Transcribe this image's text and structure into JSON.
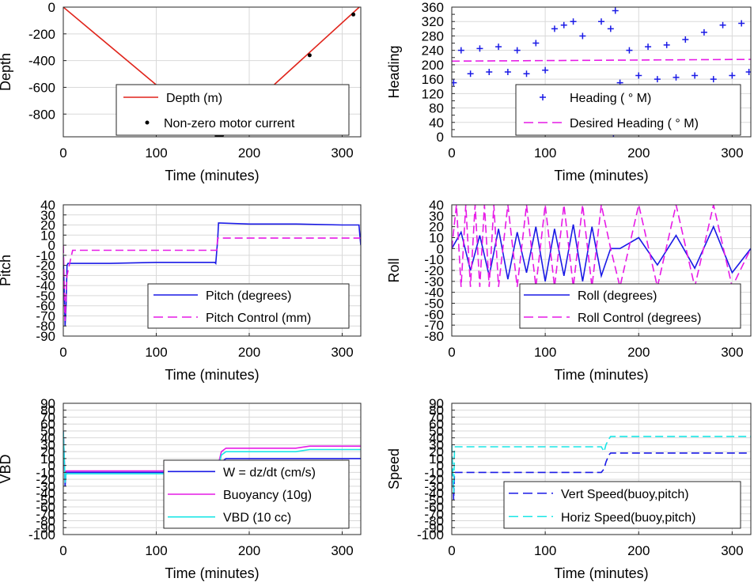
{
  "chart_data": [
    {
      "id": "depth",
      "type": "line",
      "xlabel": "Time (minutes)",
      "ylabel": "Depth",
      "xlim": [
        0,
        320
      ],
      "ylim": [
        -970,
        0
      ],
      "xticks": [
        0,
        100,
        200,
        300
      ],
      "yticks": [
        0,
        -200,
        -400,
        -600,
        -800
      ],
      "grid": true,
      "legend_position": "lower-right",
      "series": [
        {
          "name": "Depth (m)",
          "style": "line",
          "color": "#e0241b",
          "x": [
            0,
            166,
            320
          ],
          "y": [
            0,
            -965,
            10
          ]
        },
        {
          "name": "Non-zero motor current",
          "style": "dots",
          "color": "#000000",
          "x": [
            165,
            168,
            171,
            175,
            265,
            312
          ],
          "y": [
            -963,
            -963,
            -955,
            -935,
            -360,
            -55
          ]
        }
      ]
    },
    {
      "id": "heading",
      "type": "scatter",
      "xlabel": "Time (minutes)",
      "ylabel": "Heading",
      "xlim": [
        0,
        320
      ],
      "ylim": [
        0,
        360
      ],
      "xticks": [
        0,
        100,
        200,
        300
      ],
      "yticks": [
        0,
        40,
        80,
        120,
        160,
        200,
        240,
        280,
        320,
        360
      ],
      "yticks_minor": [
        20,
        60,
        100,
        140,
        180,
        220,
        260,
        300,
        340
      ],
      "grid": true,
      "legend_position": "lower-right",
      "series": [
        {
          "name": "Heading (   ° M)",
          "style": "plus",
          "color": "#1a1ae6",
          "x": [
            2,
            10,
            20,
            30,
            40,
            50,
            60,
            70,
            80,
            90,
            100,
            110,
            115,
            120,
            125,
            130,
            140,
            150,
            160,
            165,
            170,
            173,
            175,
            180,
            190,
            200,
            210,
            220,
            230,
            240,
            250,
            260,
            270,
            280,
            290,
            300,
            310,
            318
          ],
          "y": [
            150,
            240,
            175,
            245,
            180,
            250,
            180,
            240,
            175,
            260,
            185,
            300,
            120,
            310,
            130,
            320,
            280,
            130,
            320,
            125,
            300,
            10,
            350,
            150,
            240,
            170,
            250,
            160,
            255,
            165,
            270,
            170,
            290,
            160,
            310,
            170,
            315,
            180
          ]
        },
        {
          "name": "Desired Heading (     ° M)",
          "style": "dashed",
          "color": "#e61ae6",
          "x": [
            0,
            320
          ],
          "y": [
            210,
            215
          ]
        }
      ]
    },
    {
      "id": "pitch",
      "type": "line",
      "xlabel": "Time (minutes)",
      "ylabel": "Pitch",
      "xlim": [
        0,
        320
      ],
      "ylim": [
        -90,
        40
      ],
      "xticks": [
        0,
        100,
        200,
        300
      ],
      "yticks": [
        40,
        30,
        20,
        10,
        0,
        -10,
        -20,
        -30,
        -40,
        -50,
        -60,
        -70,
        -80,
        -90
      ],
      "grid": true,
      "legend_position": "lower-right",
      "series": [
        {
          "name": "Pitch (degrees)",
          "style": "line",
          "color": "#1a1ae6",
          "x": [
            0,
            2,
            3,
            4,
            5,
            50,
            100,
            163,
            164,
            166,
            167,
            200,
            250,
            300,
            318,
            319,
            320
          ],
          "y": [
            -10,
            -80,
            -60,
            -20,
            -18,
            -18,
            -17,
            -17,
            -18,
            5,
            22,
            21,
            21,
            20,
            20,
            10,
            0
          ]
        },
        {
          "name": "Pitch Control (mm)",
          "style": "dashed",
          "color": "#e61ae6",
          "x": [
            0,
            2,
            4,
            10,
            165,
            166,
            170,
            320
          ],
          "y": [
            0,
            -75,
            -30,
            -5,
            -5,
            7,
            7,
            7
          ]
        }
      ]
    },
    {
      "id": "roll",
      "type": "line",
      "xlabel": "Time (minutes)",
      "ylabel": "Roll",
      "xlim": [
        0,
        320
      ],
      "ylim": [
        -80,
        40
      ],
      "xticks": [
        0,
        100,
        200,
        300
      ],
      "yticks": [
        40,
        30,
        20,
        10,
        0,
        -10,
        -20,
        -30,
        -40,
        -50,
        -60,
        -70,
        -80
      ],
      "grid": true,
      "legend_position": "lower-right",
      "series": [
        {
          "name": "Roll (degrees)",
          "style": "line",
          "color": "#1a1ae6",
          "x": [
            0,
            10,
            20,
            30,
            40,
            50,
            60,
            70,
            80,
            90,
            100,
            110,
            120,
            130,
            140,
            150,
            160,
            170,
            180,
            200,
            220,
            240,
            260,
            280,
            300,
            320
          ],
          "y": [
            0,
            15,
            -20,
            12,
            -25,
            18,
            -28,
            15,
            -22,
            20,
            -30,
            18,
            -25,
            22,
            -30,
            20,
            -25,
            0,
            0,
            10,
            -15,
            12,
            -18,
            20,
            -22,
            0
          ]
        },
        {
          "name": "Roll Control (degrees)",
          "style": "dashed",
          "color": "#e61ae6",
          "x": [
            0,
            5,
            10,
            15,
            20,
            25,
            30,
            35,
            40,
            45,
            50,
            60,
            70,
            80,
            90,
            100,
            110,
            120,
            130,
            140,
            150,
            160,
            170,
            180,
            200,
            220,
            240,
            260,
            280,
            300,
            320
          ],
          "y": [
            0,
            40,
            -35,
            40,
            -35,
            40,
            -35,
            40,
            -35,
            40,
            -35,
            40,
            -35,
            40,
            -35,
            40,
            -35,
            40,
            -35,
            40,
            -35,
            40,
            0,
            -35,
            40,
            -35,
            40,
            -35,
            40,
            -35,
            0
          ]
        }
      ]
    },
    {
      "id": "vbd",
      "type": "line",
      "xlabel": "Time (minutes)",
      "ylabel": "VBD",
      "xlim": [
        0,
        320
      ],
      "ylim": [
        -100,
        90
      ],
      "xticks": [
        0,
        100,
        200,
        300
      ],
      "yticks": [
        90,
        80,
        70,
        60,
        50,
        40,
        30,
        20,
        10,
        0,
        -10,
        -20,
        -30,
        -40,
        -50,
        -60,
        -70,
        -80,
        -90,
        -100
      ],
      "grid": true,
      "legend_position": "lower-right",
      "series": [
        {
          "name": "W = dz/dt (cm/s)",
          "style": "line",
          "color": "#1a1ae6",
          "x": [
            0,
            2,
            3,
            5,
            50,
            100,
            163,
            165,
            170,
            175,
            250,
            300,
            320
          ],
          "y": [
            50,
            -30,
            -10,
            -10,
            -10,
            -10,
            -10,
            -10,
            5,
            10,
            10,
            10,
            10
          ]
        },
        {
          "name": "Buoyancy (10g)",
          "style": "line",
          "color": "#e61ae6",
          "x": [
            0,
            2,
            3,
            5,
            50,
            100,
            163,
            165,
            170,
            175,
            250,
            265,
            300,
            320
          ],
          "y": [
            50,
            -25,
            -8,
            -8,
            -8,
            -8,
            -8,
            -8,
            20,
            25,
            25,
            28,
            28,
            28
          ]
        },
        {
          "name": "VBD (10 cc)",
          "style": "line",
          "color": "#1ae6e6",
          "x": [
            0,
            2,
            3,
            5,
            50,
            100,
            163,
            165,
            170,
            175,
            250,
            265,
            300,
            320
          ],
          "y": [
            50,
            -25,
            -12,
            -12,
            -12,
            -12,
            -12,
            -12,
            15,
            20,
            20,
            23,
            23,
            23
          ]
        }
      ]
    },
    {
      "id": "speed",
      "type": "line",
      "xlabel": "Time (minutes)",
      "ylabel": "Speed",
      "xlim": [
        0,
        320
      ],
      "ylim": [
        -100,
        90
      ],
      "xticks": [
        0,
        100,
        200,
        300
      ],
      "yticks": [
        90,
        80,
        70,
        60,
        50,
        40,
        30,
        20,
        10,
        0,
        -10,
        -20,
        -30,
        -40,
        -50,
        -60,
        -70,
        -80,
        -90,
        -100
      ],
      "grid": true,
      "legend_position": "lower-right",
      "series": [
        {
          "name": "Vert Speed(buoy,pitch)",
          "style": "dashed",
          "color": "#1a1ae6",
          "x": [
            0,
            2,
            3,
            5,
            50,
            100,
            160,
            163,
            165,
            168,
            170,
            250,
            320
          ],
          "y": [
            30,
            -50,
            -10,
            -10,
            -10,
            -10,
            -10,
            -5,
            5,
            15,
            18,
            18,
            18
          ]
        },
        {
          "name": "Horiz Speed(buoy,pitch)",
          "style": "dashed",
          "color": "#1ae6e6",
          "x": [
            0,
            2,
            3,
            5,
            50,
            100,
            160,
            163,
            165,
            168,
            170,
            250,
            320
          ],
          "y": [
            30,
            -40,
            27,
            27,
            27,
            27,
            27,
            20,
            30,
            38,
            42,
            42,
            42
          ]
        }
      ]
    }
  ]
}
